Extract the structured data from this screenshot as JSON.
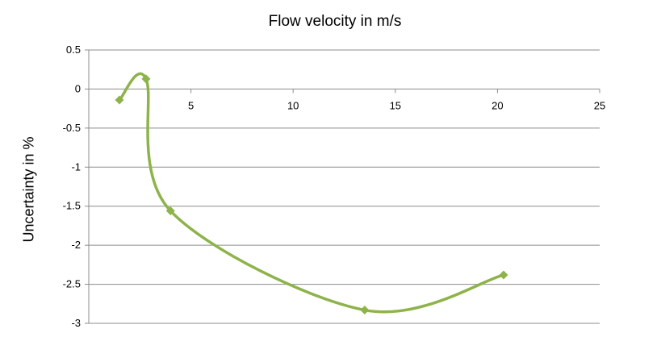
{
  "chart_data": {
    "type": "line",
    "title": "Flow velocity in m/s",
    "xlabel": "",
    "ylabel": "Uncertainty in %",
    "xlim": [
      0,
      25
    ],
    "ylim": [
      -3,
      0.5
    ],
    "x_ticks": [
      "5",
      "10",
      "15",
      "20",
      "25"
    ],
    "y_ticks": [
      "0.5",
      "0",
      "-0.5",
      "-1",
      "-1.5",
      "-2",
      "-2.5",
      "-3"
    ],
    "grid": true,
    "smoothed": true,
    "series": [
      {
        "x": [
          1.5,
          2.8,
          4.0,
          13.5,
          20.3
        ],
        "y": [
          -0.14,
          0.13,
          -1.56,
          -2.83,
          -2.38
        ],
        "color": "#8db34a",
        "marker": "diamond"
      }
    ]
  }
}
